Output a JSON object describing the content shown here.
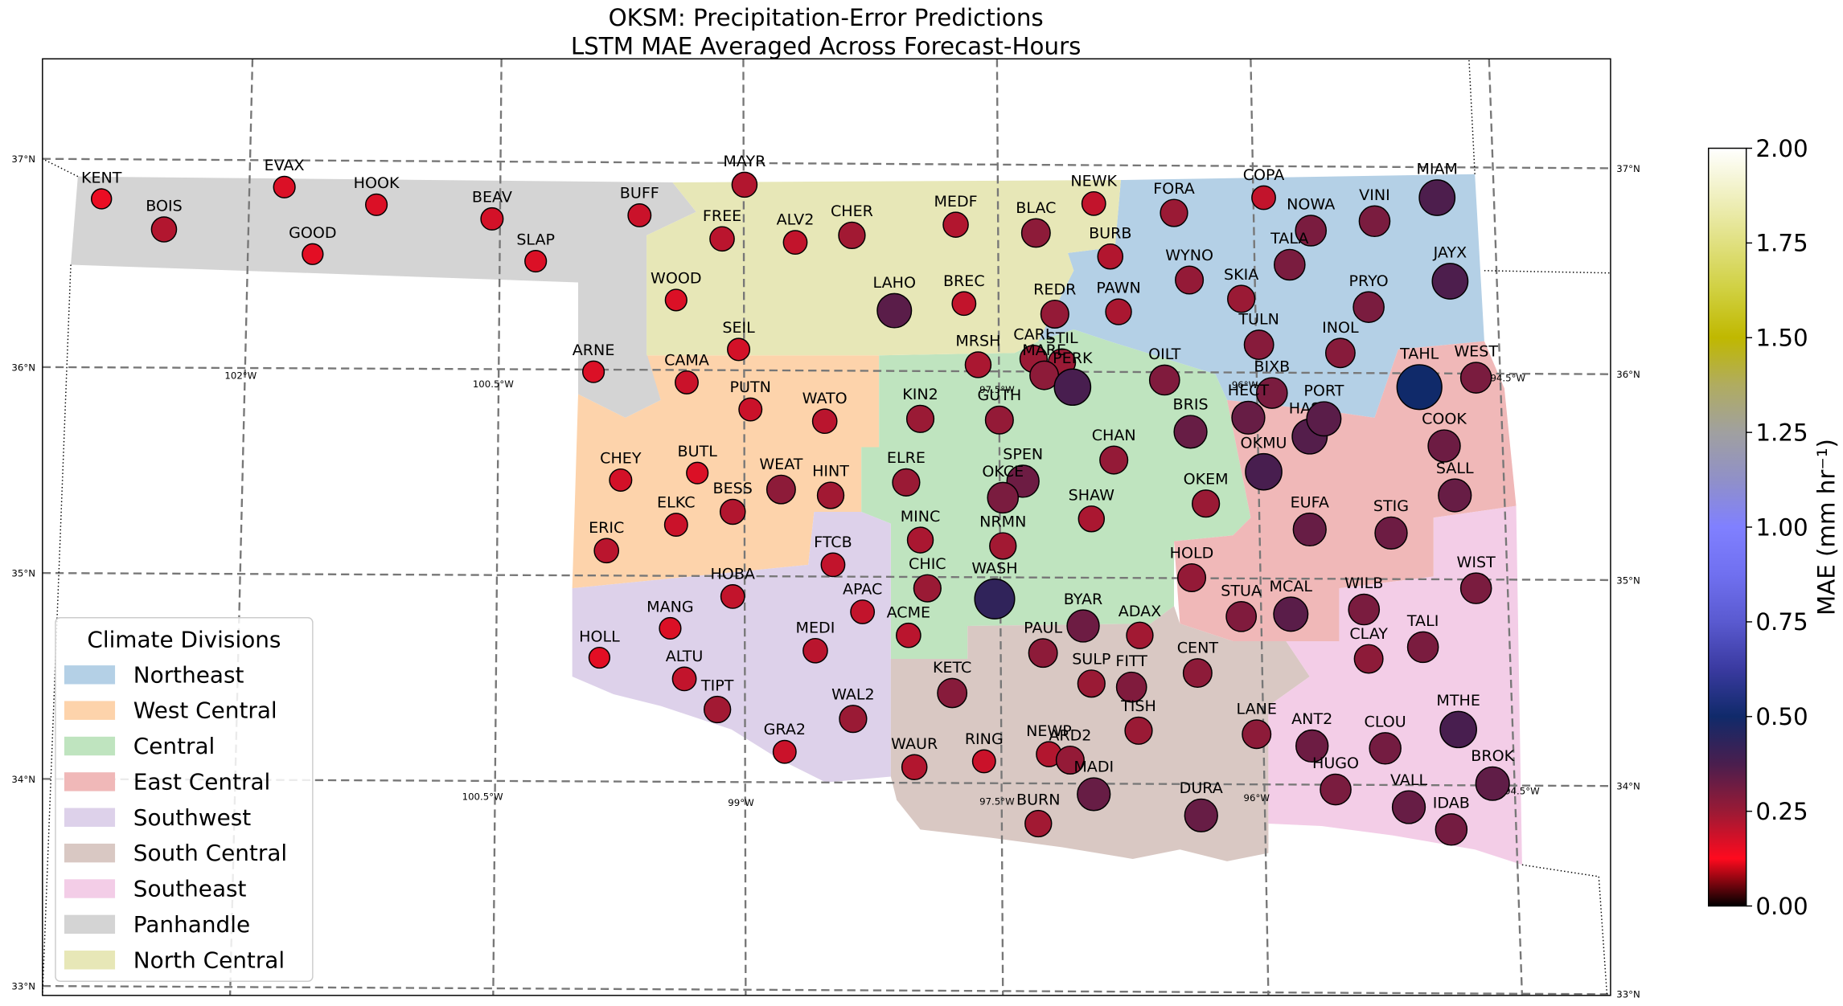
{
  "chart_data": {
    "type": "scatter-map",
    "title": "OKSM: Precipitation-Error Predictions",
    "subtitle": "LSTM MAE Averaged Across Forecast-Hours",
    "legend_title": "Climate Divisions",
    "divisions": [
      {
        "name": "Northeast",
        "color": "#b4d0e6"
      },
      {
        "name": "West Central",
        "color": "#fdd3ab"
      },
      {
        "name": "Central",
        "color": "#bfe4bf"
      },
      {
        "name": "East Central",
        "color": "#f0b8b8"
      },
      {
        "name": "Southwest",
        "color": "#ddd1ea"
      },
      {
        "name": "South Central",
        "color": "#d9c8c3"
      },
      {
        "name": "Southeast",
        "color": "#f3cde7"
      },
      {
        "name": "Panhandle",
        "color": "#d4d4d4"
      },
      {
        "name": "North Central",
        "color": "#e7e7b7"
      }
    ],
    "colorbar_label": "MAE (mm hr⁻¹)",
    "clim": [
      0,
      2
    ],
    "colorbar_ticks": [
      {
        "value": 0,
        "label": "0.00"
      },
      {
        "value": 0.25,
        "label": "0.25"
      },
      {
        "value": 0.5,
        "label": "0.50"
      },
      {
        "value": 0.75,
        "label": "0.75"
      },
      {
        "value": 1,
        "label": "1.00"
      },
      {
        "value": 1.25,
        "label": "1.25"
      },
      {
        "value": 1.5,
        "label": "1.50"
      },
      {
        "value": 1.75,
        "label": "1.75"
      },
      {
        "value": 2,
        "label": "2.00"
      }
    ],
    "colormap": [
      "#000000",
      "#ff0a1e",
      "#9a1a35",
      "#4a1e4e",
      "#102a6a",
      "#3a3aa0",
      "#5a5ad0",
      "#7070f0",
      "#8080ff",
      "#9090c8",
      "#a0a0a0",
      "#b0ac60",
      "#c0b800",
      "#d0d040",
      "#e0e080",
      "#f0f0c0",
      "#ffffff"
    ],
    "lat_labels": [
      "37°N",
      "36°N",
      "35°N",
      "34°N",
      "33°N"
    ],
    "lon_labels": [
      "102°W",
      "100.5°W",
      "97.5°W",
      "96°W",
      "94.5°W",
      "100.5°W",
      "99°W",
      "97.5°W",
      "96°W",
      "94.5°W"
    ],
    "stations": [
      {
        "name": "KENT",
        "value": 0.15
      },
      {
        "name": "BOIS",
        "value": 0.22
      },
      {
        "name": "EVAX",
        "value": 0.17
      },
      {
        "name": "HOOK",
        "value": 0.17
      },
      {
        "name": "GOOD",
        "value": 0.16
      },
      {
        "name": "BEAV",
        "value": 0.18
      },
      {
        "name": "SLAP",
        "value": 0.17
      },
      {
        "name": "BUFF",
        "value": 0.19
      },
      {
        "name": "MAYR",
        "value": 0.22
      },
      {
        "name": "FREE",
        "value": 0.21
      },
      {
        "name": "ALV2",
        "value": 0.2
      },
      {
        "name": "CHER",
        "value": 0.24
      },
      {
        "name": "MEDF",
        "value": 0.22
      },
      {
        "name": "BLAC",
        "value": 0.27
      },
      {
        "name": "NEWK",
        "value": 0.2
      },
      {
        "name": "BURB",
        "value": 0.22
      },
      {
        "name": "FORA",
        "value": 0.25
      },
      {
        "name": "COPA",
        "value": 0.2
      },
      {
        "name": "NOWA",
        "value": 0.3
      },
      {
        "name": "VINI",
        "value": 0.3
      },
      {
        "name": "MIAM",
        "value": 0.37
      },
      {
        "name": "WOOD",
        "value": 0.17
      },
      {
        "name": "LAHO",
        "value": 0.35
      },
      {
        "name": "BREC",
        "value": 0.2
      },
      {
        "name": "REDR",
        "value": 0.26
      },
      {
        "name": "PAWN",
        "value": 0.23
      },
      {
        "name": "WYNO",
        "value": 0.26
      },
      {
        "name": "TALA",
        "value": 0.3
      },
      {
        "name": "SKIA",
        "value": 0.25
      },
      {
        "name": "PRYO",
        "value": 0.3
      },
      {
        "name": "JAYX",
        "value": 0.37
      },
      {
        "name": "SEIL",
        "value": 0.18
      },
      {
        "name": "ARNE",
        "value": 0.17
      },
      {
        "name": "CAMA",
        "value": 0.19
      },
      {
        "name": "MRSH",
        "value": 0.23
      },
      {
        "name": "CARL",
        "value": 0.25
      },
      {
        "name": "STIL",
        "value": 0.25
      },
      {
        "name": "MARE",
        "value": 0.27
      },
      {
        "name": "PERK",
        "value": 0.38
      },
      {
        "name": "OILT",
        "value": 0.29
      },
      {
        "name": "TULN",
        "value": 0.28
      },
      {
        "name": "INOL",
        "value": 0.28
      },
      {
        "name": "TAHL",
        "value": 0.5
      },
      {
        "name": "WEST",
        "value": 0.3
      },
      {
        "name": "BIXB",
        "value": 0.3
      },
      {
        "name": "PUTN",
        "value": 0.19
      },
      {
        "name": "WATO",
        "value": 0.21
      },
      {
        "name": "KIN2",
        "value": 0.25
      },
      {
        "name": "GUTH",
        "value": 0.26
      },
      {
        "name": "HECT",
        "value": 0.33
      },
      {
        "name": "HASK",
        "value": 0.36
      },
      {
        "name": "PORT",
        "value": 0.35
      },
      {
        "name": "BRIS",
        "value": 0.33
      },
      {
        "name": "COOK",
        "value": 0.32
      },
      {
        "name": "CHAN",
        "value": 0.26
      },
      {
        "name": "CHEY",
        "value": 0.18
      },
      {
        "name": "BUTL",
        "value": 0.17
      },
      {
        "name": "ELKC",
        "value": 0.19
      },
      {
        "name": "BESS",
        "value": 0.22
      },
      {
        "name": "WEAT",
        "value": 0.27
      },
      {
        "name": "HINT",
        "value": 0.24
      },
      {
        "name": "ELRE",
        "value": 0.25
      },
      {
        "name": "SPEN",
        "value": 0.32
      },
      {
        "name": "OKCE",
        "value": 0.3
      },
      {
        "name": "OKMU",
        "value": 0.38
      },
      {
        "name": "SALL",
        "value": 0.33
      },
      {
        "name": "OKEM",
        "value": 0.25
      },
      {
        "name": "SHAW",
        "value": 0.23
      },
      {
        "name": "EUFA",
        "value": 0.33
      },
      {
        "name": "STIG",
        "value": 0.32
      },
      {
        "name": "ERIC",
        "value": 0.21
      },
      {
        "name": "MINC",
        "value": 0.23
      },
      {
        "name": "NRMN",
        "value": 0.24
      },
      {
        "name": "FTCB",
        "value": 0.2
      },
      {
        "name": "HOLD",
        "value": 0.26
      },
      {
        "name": "WIST",
        "value": 0.3
      },
      {
        "name": "CHIC",
        "value": 0.25
      },
      {
        "name": "HOBA",
        "value": 0.2
      },
      {
        "name": "WASH",
        "value": 0.43
      },
      {
        "name": "APAC",
        "value": 0.2
      },
      {
        "name": "BYAR",
        "value": 0.32
      },
      {
        "name": "STUA",
        "value": 0.29
      },
      {
        "name": "MCAL",
        "value": 0.35
      },
      {
        "name": "WILB",
        "value": 0.3
      },
      {
        "name": "MANG",
        "value": 0.17
      },
      {
        "name": "ACME",
        "value": 0.21
      },
      {
        "name": "ADAX",
        "value": 0.24
      },
      {
        "name": "HOLL",
        "value": 0.16
      },
      {
        "name": "PAUL",
        "value": 0.27
      },
      {
        "name": "MEDI",
        "value": 0.21
      },
      {
        "name": "CLAY",
        "value": 0.27
      },
      {
        "name": "TALI",
        "value": 0.3
      },
      {
        "name": "CENT",
        "value": 0.27
      },
      {
        "name": "SULP",
        "value": 0.25
      },
      {
        "name": "FITT",
        "value": 0.29
      },
      {
        "name": "ALTU",
        "value": 0.2
      },
      {
        "name": "KETC",
        "value": 0.28
      },
      {
        "name": "TIPT",
        "value": 0.24
      },
      {
        "name": "WAL2",
        "value": 0.25
      },
      {
        "name": "TISH",
        "value": 0.25
      },
      {
        "name": "LANE",
        "value": 0.27
      },
      {
        "name": "MTHE",
        "value": 0.38
      },
      {
        "name": "ANT2",
        "value": 0.32
      },
      {
        "name": "CLOU",
        "value": 0.31
      },
      {
        "name": "GRA2",
        "value": 0.19
      },
      {
        "name": "RING",
        "value": 0.19
      },
      {
        "name": "NEWP",
        "value": 0.22
      },
      {
        "name": "ARD2",
        "value": 0.26
      },
      {
        "name": "WAUR",
        "value": 0.22
      },
      {
        "name": "HUGO",
        "value": 0.3
      },
      {
        "name": "BROK",
        "value": 0.34
      },
      {
        "name": "MADI",
        "value": 0.33
      },
      {
        "name": "VALL",
        "value": 0.33
      },
      {
        "name": "DURA",
        "value": 0.33
      },
      {
        "name": "IDAB",
        "value": 0.31
      },
      {
        "name": "BURN",
        "value": 0.24
      }
    ]
  }
}
